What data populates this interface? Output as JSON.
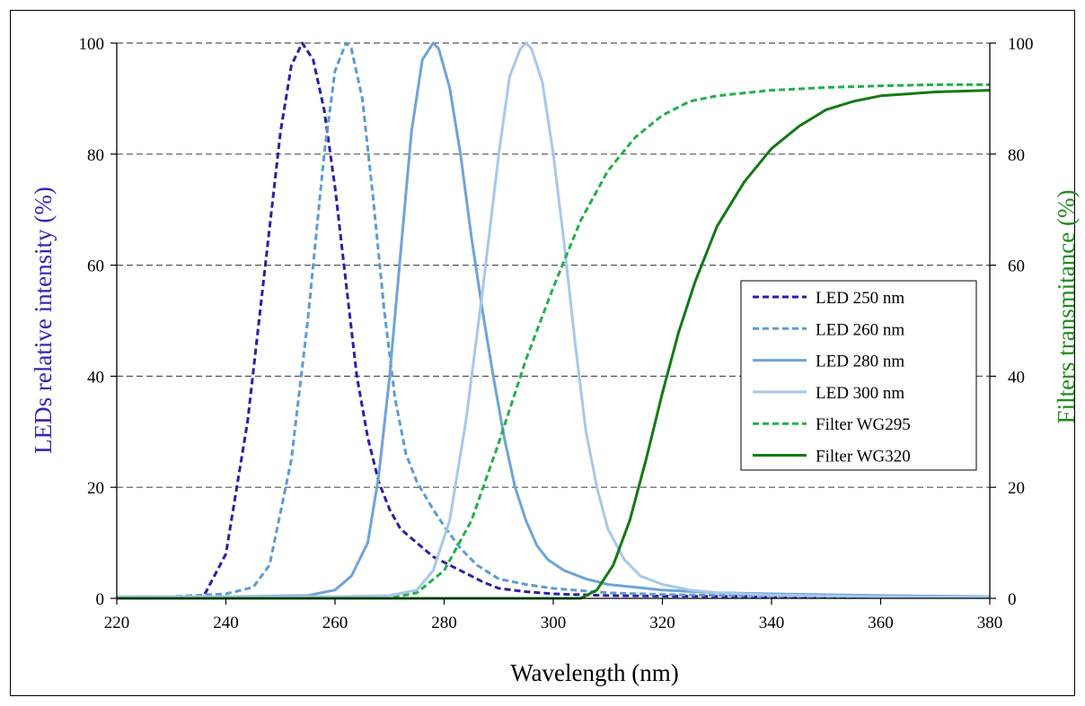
{
  "chart_data": {
    "type": "line",
    "xlabel": "Wavelength  (nm)",
    "ylabel_left": "LEDs relative  intensity  (%)",
    "ylabel_right": "Filters transmitance  (%)",
    "xlim": [
      220,
      380
    ],
    "ylim_left": [
      0,
      100
    ],
    "ylim_right": [
      0,
      100
    ],
    "x_ticks": [
      "220",
      "240",
      "260",
      "280",
      "300",
      "320",
      "340",
      "360",
      "380"
    ],
    "y_ticks_left": [
      "0",
      "20",
      "40",
      "60",
      "80",
      "100"
    ],
    "y_ticks_right": [
      "0",
      "20",
      "40",
      "60",
      "80",
      "100"
    ],
    "grid": "horizontal dashed",
    "legend_position": "right",
    "colors": {
      "left_axis_label": "#3c1fb4",
      "right_axis_label": "#1e8c1e"
    },
    "series": [
      {
        "name": "LED 250 nm",
        "axis": "left",
        "color": "#2d1ea8",
        "style": "dashed",
        "x": [
          220,
          230,
          236,
          240,
          244,
          247,
          250,
          252,
          254,
          256,
          258,
          260,
          262,
          264,
          266,
          268,
          270,
          272,
          275,
          278,
          281,
          284,
          287,
          290,
          295,
          300,
          310,
          320,
          340,
          360,
          380
        ],
        "y": [
          0.3,
          0.3,
          0.5,
          8,
          32,
          58,
          84,
          96,
          100,
          97,
          88,
          74,
          57,
          40,
          29,
          21,
          16,
          12.5,
          10,
          7.5,
          6,
          4.5,
          3,
          1.8,
          1.2,
          0.8,
          0.5,
          0.4,
          0.3,
          0.2,
          0.2
        ]
      },
      {
        "name": "LED 260 nm",
        "axis": "left",
        "color": "#5b9bd5",
        "style": "dashed",
        "x": [
          220,
          230,
          240,
          245,
          248,
          252,
          255,
          258,
          260,
          262,
          263,
          265,
          267,
          269,
          271,
          273,
          275,
          278,
          280,
          283,
          286,
          290,
          295,
          300,
          310,
          320,
          340,
          360,
          380
        ],
        "y": [
          0.3,
          0.3,
          0.8,
          2,
          6,
          25,
          50,
          80,
          95,
          100,
          99,
          90,
          72,
          52,
          36,
          26,
          21,
          16,
          13,
          9,
          6,
          3.5,
          2.5,
          1.8,
          1,
          0.7,
          0.4,
          0.3,
          0.2
        ]
      },
      {
        "name": "LED 280 nm",
        "axis": "left",
        "color": "#6fa3d8",
        "style": "solid",
        "x": [
          220,
          240,
          255,
          260,
          263,
          266,
          268,
          270,
          272,
          274,
          276,
          278,
          279,
          281,
          283,
          285,
          287,
          289,
          291,
          293,
          295,
          297,
          299,
          302,
          306,
          310,
          320,
          330,
          340,
          360,
          380
        ],
        "y": [
          0.3,
          0.3,
          0.5,
          1.5,
          4,
          10,
          22,
          40,
          62,
          84,
          97,
          100,
          99,
          92,
          80,
          65,
          52,
          40,
          29,
          20,
          14,
          9.5,
          7,
          5,
          3.5,
          2.5,
          1.5,
          1,
          0.8,
          0.5,
          0.3
        ]
      },
      {
        "name": "LED 300 nm",
        "axis": "left",
        "color": "#a7c8ea",
        "style": "solid",
        "x": [
          220,
          260,
          270,
          275,
          278,
          281,
          284,
          287,
          290,
          292,
          294,
          295,
          296,
          298,
          300,
          302,
          304,
          306,
          308,
          310,
          313,
          316,
          320,
          325,
          330,
          340,
          360,
          380
        ],
        "y": [
          0.3,
          0.3,
          0.5,
          1.5,
          5,
          14,
          32,
          55,
          80,
          94,
          99,
          100,
          99,
          93,
          80,
          64,
          46,
          30,
          20,
          12.5,
          7,
          4,
          2.5,
          1.5,
          1,
          0.6,
          0.3,
          0.2
        ]
      },
      {
        "name": "Filter WG295",
        "axis": "right",
        "color": "#22b04c",
        "style": "dashed",
        "x": [
          220,
          270,
          275,
          280,
          285,
          290,
          295,
          300,
          305,
          310,
          315,
          320,
          325,
          330,
          340,
          350,
          360,
          370,
          380
        ],
        "y": [
          0,
          0,
          1,
          5,
          14,
          28,
          43,
          56,
          68,
          77,
          83,
          87,
          89.5,
          90.5,
          91.5,
          92,
          92.3,
          92.5,
          92.5
        ]
      },
      {
        "name": "Filter WG320",
        "axis": "right",
        "color": "#137a13",
        "style": "solid",
        "x": [
          220,
          305,
          308,
          311,
          314,
          317,
          320,
          323,
          326,
          330,
          335,
          340,
          345,
          350,
          355,
          360,
          370,
          380
        ],
        "y": [
          0,
          0,
          1.5,
          6,
          14,
          25,
          37,
          48,
          57,
          67,
          75,
          81,
          85,
          88,
          89.5,
          90.5,
          91.2,
          91.5
        ]
      }
    ]
  }
}
